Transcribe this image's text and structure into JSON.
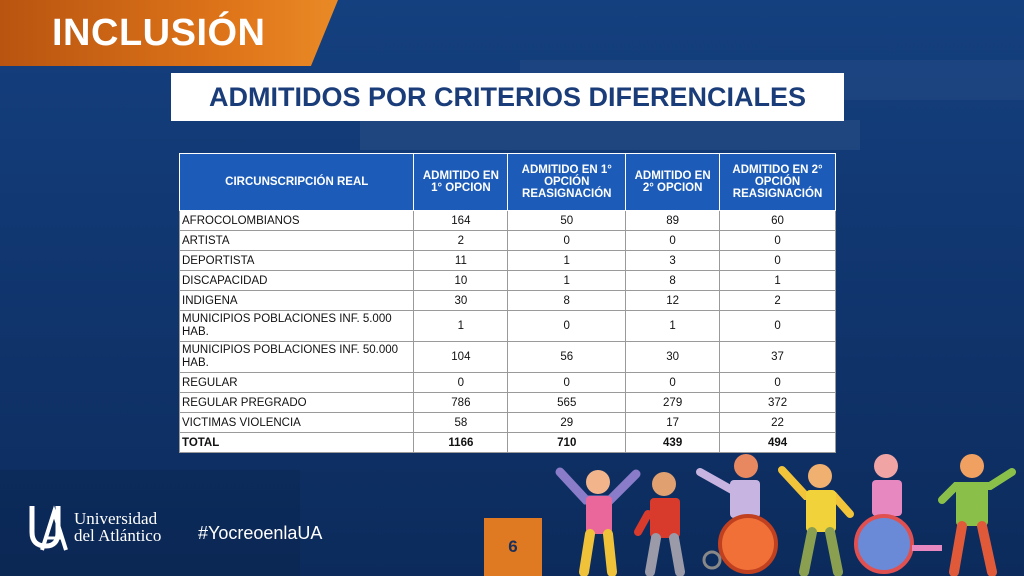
{
  "header": {
    "title": "INCLUSIÓN",
    "subtitle": "ADMITIDOS POR CRITERIOS DIFERENCIALES"
  },
  "table": {
    "headers": [
      "CIRCUNSCRIPCIÓN REAL",
      "ADMITIDO EN 1° OPCION",
      "ADMITIDO EN 1° OPCIÓN REASIGNACIÓN",
      "ADMITIDO EN 2° OPCION",
      "ADMITIDO EN 2° OPCIÓN REASIGNACIÓN"
    ],
    "rows": [
      [
        "AFROCOLOMBIANOS",
        "164",
        "50",
        "89",
        "60"
      ],
      [
        "ARTISTA",
        "2",
        "0",
        "0",
        "0"
      ],
      [
        "DEPORTISTA",
        "11",
        "1",
        "3",
        "0"
      ],
      [
        "DISCAPACIDAD",
        "10",
        "1",
        "8",
        "1"
      ],
      [
        "INDIGENA",
        "30",
        "8",
        "12",
        "2"
      ],
      [
        "MUNICIPIOS POBLACIONES INF. 5.000 HAB.",
        "1",
        "0",
        "1",
        "0"
      ],
      [
        "MUNICIPIOS POBLACIONES INF. 50.000 HAB.",
        "104",
        "56",
        "30",
        "37"
      ],
      [
        "REGULAR",
        "0",
        "0",
        "0",
        "0"
      ],
      [
        "REGULAR PREGRADO",
        "786",
        "565",
        "279",
        "372"
      ],
      [
        "VICTIMAS VIOLENCIA",
        "58",
        "29",
        "17",
        "22"
      ]
    ],
    "total": [
      "TOTAL",
      "1166",
      "710",
      "439",
      "494"
    ]
  },
  "footer": {
    "logo_line1": "Universidad",
    "logo_line2": "del Atlántico",
    "hashtag": "#YocreoenlaUA",
    "page_number": "6"
  },
  "colors": {
    "background": "#13407d",
    "accent_orange": "#e07a22",
    "table_header": "#1c5cb8"
  },
  "icons": [
    "ua-logo-icon",
    "children-illustration"
  ]
}
